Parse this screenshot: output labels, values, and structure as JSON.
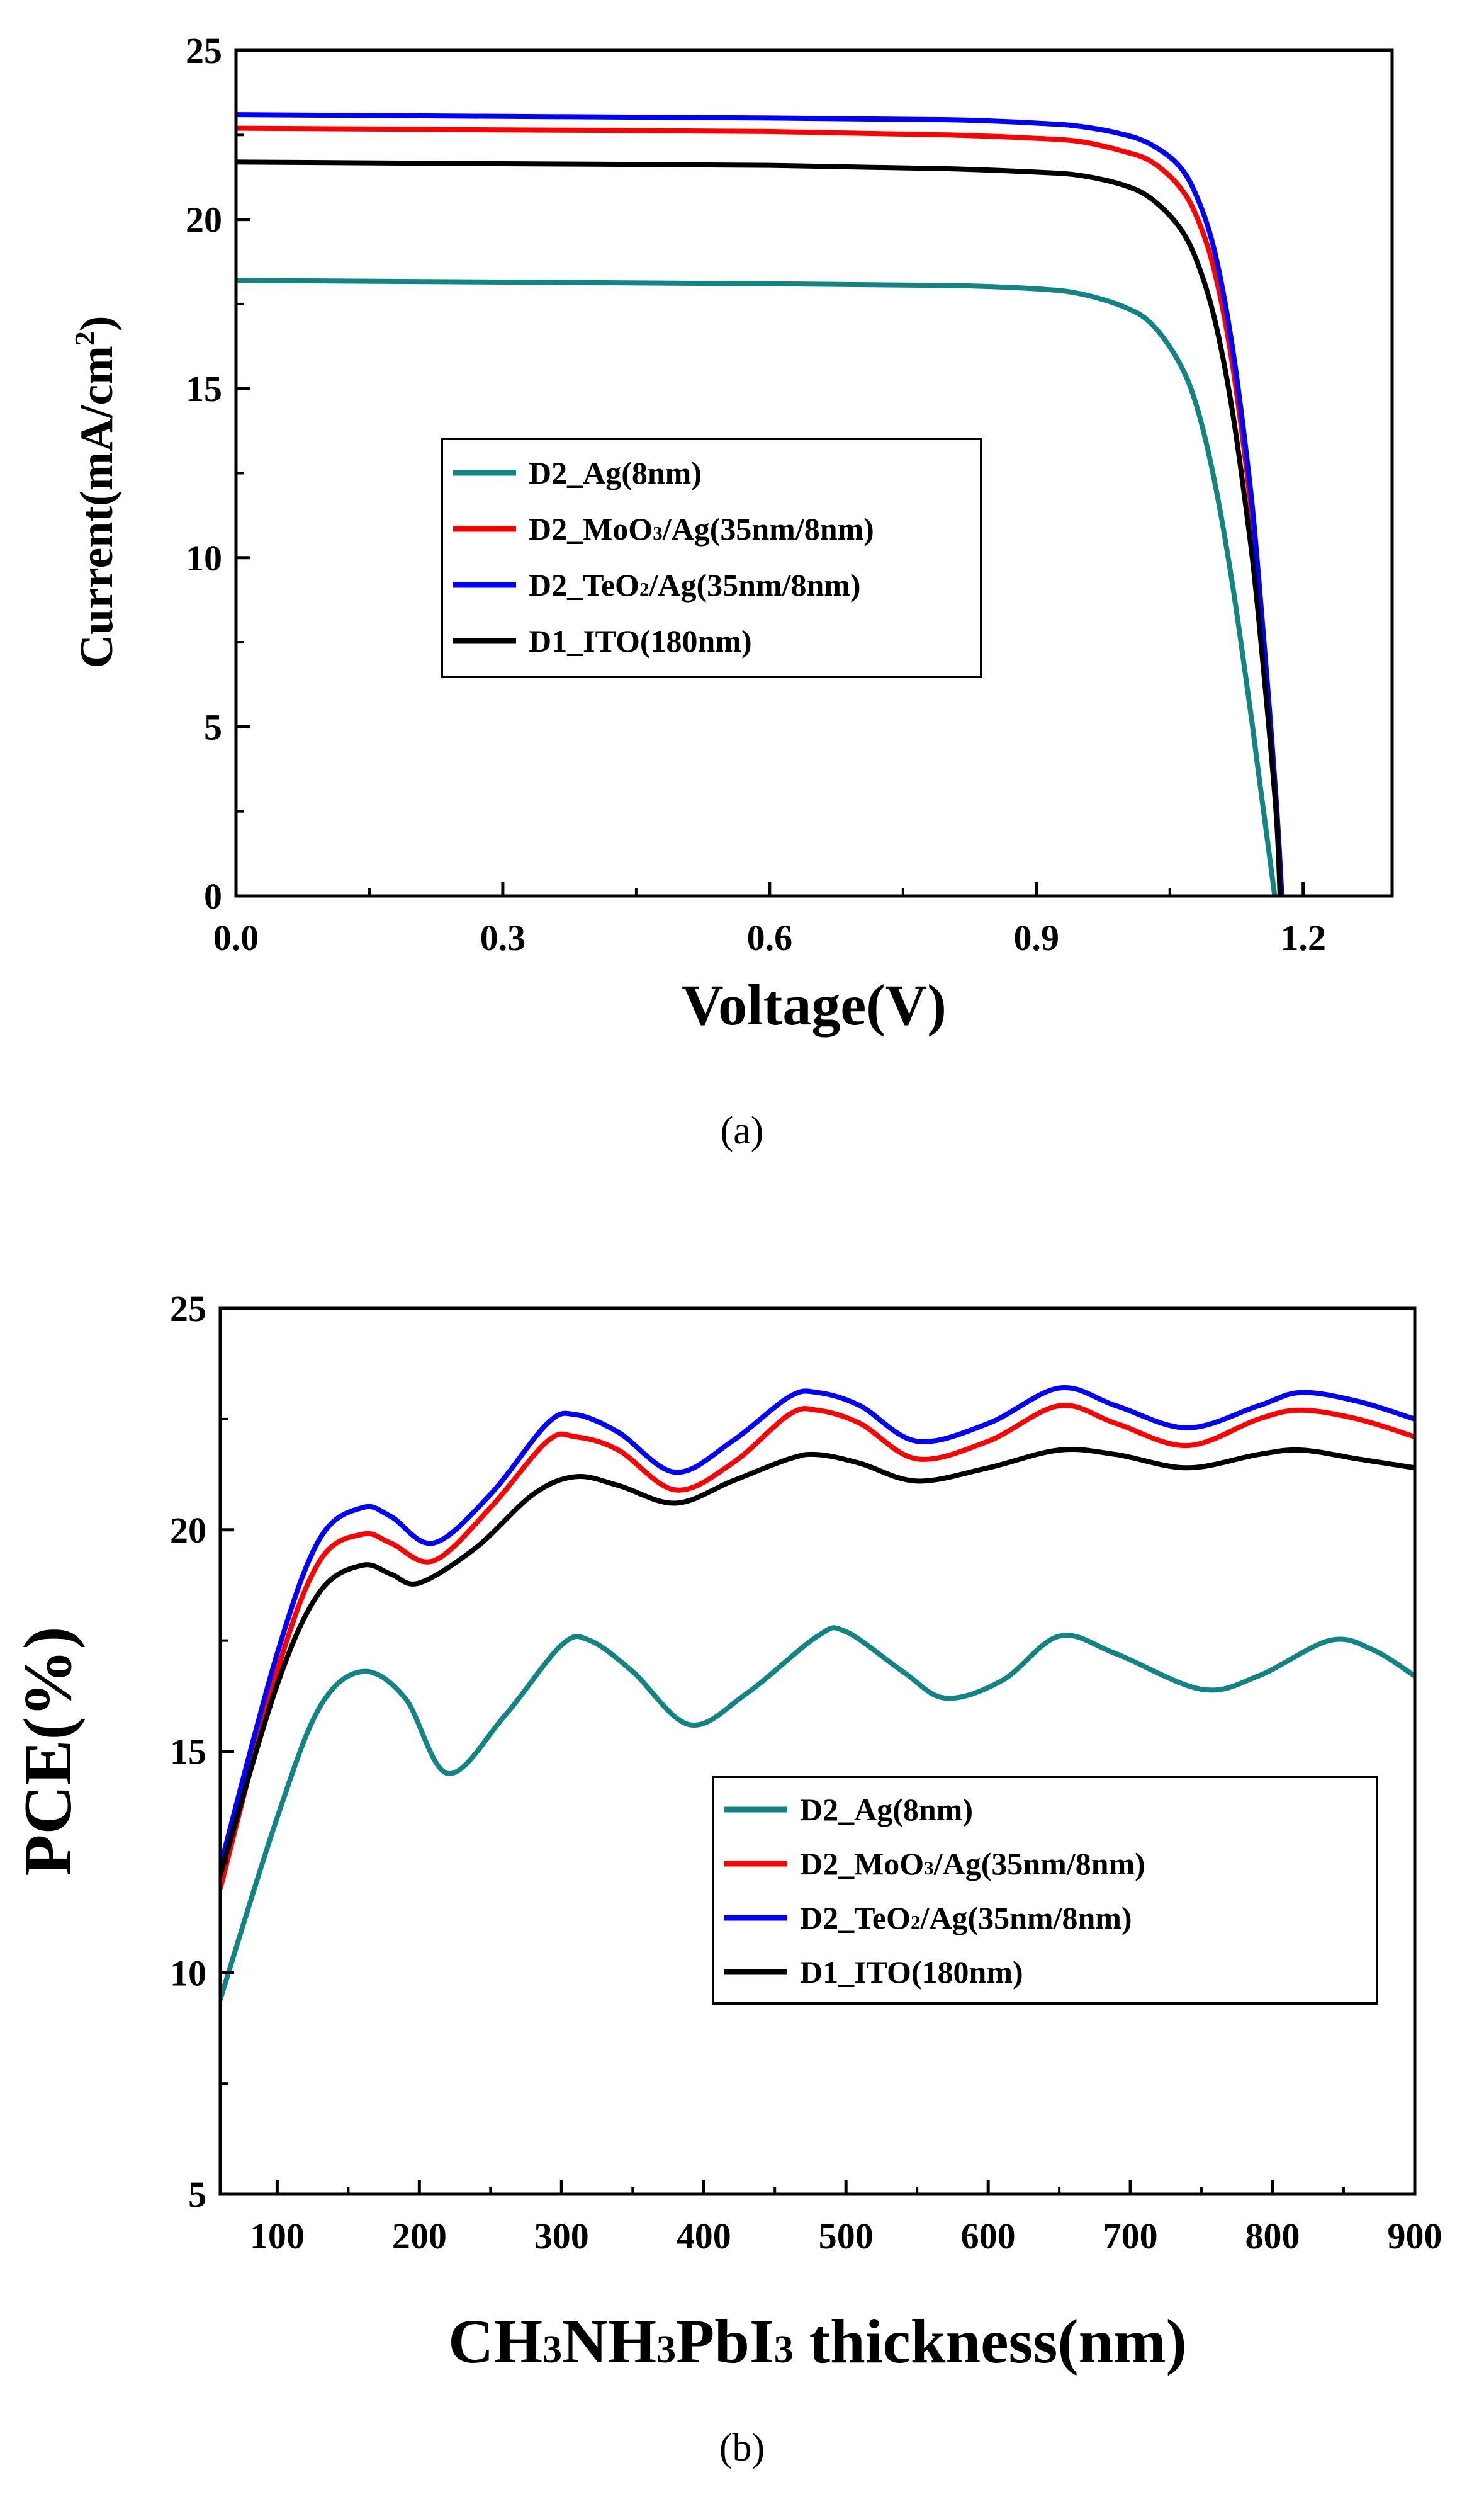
{
  "chart_data": [
    {
      "type": "line",
      "panel_label": "(a)",
      "title": "",
      "xlabel": "Voltage(V)",
      "ylabel": "Current(mA/cm",
      "ylabel_sup": "2",
      "ylabel_close": ")",
      "xlim": [
        0.0,
        1.3
      ],
      "ylim": [
        0,
        25
      ],
      "x_ticks": [
        0.0,
        0.3,
        0.6,
        0.9,
        1.2
      ],
      "x_tick_labels": [
        "0.0",
        "0.3",
        "0.6",
        "0.9",
        "1.2"
      ],
      "y_ticks": [
        0,
        5,
        10,
        15,
        20,
        25
      ],
      "y_tick_labels": [
        "0",
        "5",
        "10",
        "15",
        "20",
        "25"
      ],
      "legend_position": "center",
      "series": [
        {
          "name": "D2_Ag(8nm)",
          "label_parts": [
            "D2_Ag(8nm)"
          ],
          "color": "#138484",
          "x": [
            0.0,
            0.3,
            0.6,
            0.8,
            0.9,
            0.95,
            1.0,
            1.03,
            1.06,
            1.08,
            1.1,
            1.12,
            1.14,
            1.15,
            1.16,
            1.168
          ],
          "y": [
            18.2,
            18.15,
            18.1,
            18.05,
            17.95,
            17.8,
            17.4,
            16.9,
            15.8,
            14.5,
            12.3,
            9.3,
            5.6,
            3.6,
            1.6,
            0
          ]
        },
        {
          "name": "D2_MoO3/Ag(35nm/8nm)",
          "label_parts": [
            "D2_MoO",
            "3",
            "/Ag(35nm/8nm)"
          ],
          "color": "#ff0000",
          "x": [
            0.0,
            0.3,
            0.6,
            0.8,
            0.9,
            0.95,
            1.0,
            1.03,
            1.06,
            1.08,
            1.1,
            1.12,
            1.14,
            1.15,
            1.16,
            1.17,
            1.175
          ],
          "y": [
            22.7,
            22.65,
            22.6,
            22.5,
            22.4,
            22.3,
            22.0,
            21.7,
            21.0,
            20.1,
            18.5,
            15.8,
            11.8,
            9.1,
            6.0,
            2.6,
            0
          ]
        },
        {
          "name": "D2_TeO2/Ag(35nm/8nm)",
          "label_parts": [
            "D2_TeO",
            "2",
            "/Ag(35nm/8nm)"
          ],
          "color": "#0000ff",
          "x": [
            0.0,
            0.3,
            0.6,
            0.8,
            0.9,
            0.95,
            1.0,
            1.03,
            1.06,
            1.08,
            1.1,
            1.12,
            1.14,
            1.15,
            1.16,
            1.17,
            1.176
          ],
          "y": [
            23.1,
            23.05,
            23.0,
            22.95,
            22.85,
            22.75,
            22.5,
            22.2,
            21.6,
            20.7,
            19.1,
            16.3,
            12.2,
            9.4,
            6.2,
            2.7,
            0
          ]
        },
        {
          "name": "D1_ITO(180nm)",
          "label_parts": [
            "D1_ITO(180nm)"
          ],
          "color": "#000000",
          "x": [
            0.0,
            0.3,
            0.6,
            0.8,
            0.9,
            0.95,
            1.0,
            1.03,
            1.06,
            1.08,
            1.1,
            1.12,
            1.14,
            1.15,
            1.16,
            1.17,
            1.174
          ],
          "y": [
            21.7,
            21.65,
            21.6,
            21.5,
            21.4,
            21.3,
            21.0,
            20.6,
            19.8,
            18.8,
            17.1,
            14.4,
            10.6,
            8.2,
            5.4,
            2.3,
            0
          ]
        }
      ]
    },
    {
      "type": "line",
      "panel_label": "(b)",
      "title": "",
      "xlabel_parts": [
        "CH",
        "3",
        "NH",
        "3",
        "PbI",
        "3",
        " thickness(nm)"
      ],
      "ylabel": "PCE(%)",
      "xlim": [
        60,
        900
      ],
      "ylim": [
        5,
        25
      ],
      "x_ticks": [
        100,
        200,
        300,
        400,
        500,
        600,
        700,
        800,
        900
      ],
      "x_tick_labels": [
        "100",
        "200",
        "300",
        "400",
        "500",
        "600",
        "700",
        "800",
        "900"
      ],
      "y_ticks": [
        5,
        10,
        15,
        20,
        25
      ],
      "y_tick_labels": [
        "5",
        "10",
        "15",
        "20",
        "25"
      ],
      "legend_position": "lower-right",
      "series": [
        {
          "name": "D2_Ag(8nm)",
          "label_parts": [
            "D2_Ag(8nm)"
          ],
          "color": "#138484",
          "x": [
            60,
            100,
            130,
            160,
            190,
            220,
            260,
            300,
            320,
            350,
            390,
            430,
            480,
            500,
            540,
            570,
            610,
            650,
            690,
            750,
            790,
            840,
            870,
            900
          ],
          "y": [
            9.4,
            13.5,
            16.0,
            16.8,
            16.2,
            14.5,
            15.8,
            17.4,
            17.5,
            16.8,
            15.6,
            16.3,
            17.6,
            17.7,
            16.8,
            16.2,
            16.6,
            17.6,
            17.2,
            16.4,
            16.7,
            17.5,
            17.3,
            16.7
          ]
        },
        {
          "name": "D2_MoO3/Ag(35nm/8nm)",
          "label_parts": [
            "D2_MoO",
            "3",
            "/Ag(35nm/8nm)"
          ],
          "color": "#ff0000",
          "x": [
            60,
            100,
            130,
            160,
            180,
            210,
            250,
            290,
            310,
            340,
            380,
            420,
            460,
            480,
            510,
            550,
            600,
            650,
            690,
            740,
            790,
            820,
            860,
            900
          ],
          "y": [
            11.9,
            16.8,
            19.3,
            19.9,
            19.7,
            19.3,
            20.5,
            22.0,
            22.1,
            21.8,
            20.9,
            21.5,
            22.6,
            22.7,
            22.4,
            21.6,
            22.0,
            22.8,
            22.4,
            21.9,
            22.5,
            22.7,
            22.5,
            22.1
          ]
        },
        {
          "name": "D2_TeO2/Ag(35nm/8nm)",
          "label_parts": [
            "D2_TeO",
            "2",
            "/Ag(35nm/8nm)"
          ],
          "color": "#0000ff",
          "x": [
            60,
            100,
            130,
            160,
            180,
            210,
            250,
            290,
            310,
            340,
            380,
            420,
            460,
            480,
            510,
            550,
            600,
            650,
            690,
            740,
            790,
            820,
            860,
            900
          ],
          "y": [
            12.4,
            17.2,
            19.8,
            20.5,
            20.3,
            19.7,
            20.8,
            22.4,
            22.6,
            22.2,
            21.3,
            22.0,
            23.0,
            23.1,
            22.8,
            22.0,
            22.4,
            23.2,
            22.8,
            22.3,
            22.8,
            23.1,
            22.9,
            22.5
          ]
        },
        {
          "name": "D1_ITO(180nm)",
          "label_parts": [
            "D1_ITO(180nm)"
          ],
          "color": "#000000",
          "x": [
            60,
            100,
            130,
            160,
            180,
            200,
            240,
            280,
            310,
            340,
            380,
            420,
            460,
            480,
            510,
            550,
            600,
            650,
            690,
            740,
            790,
            820,
            860,
            900
          ],
          "y": [
            12.2,
            16.5,
            18.6,
            19.2,
            19.0,
            18.8,
            19.6,
            20.8,
            21.2,
            21.0,
            20.6,
            21.1,
            21.6,
            21.7,
            21.5,
            21.1,
            21.4,
            21.8,
            21.7,
            21.4,
            21.7,
            21.8,
            21.6,
            21.4
          ]
        }
      ]
    }
  ]
}
